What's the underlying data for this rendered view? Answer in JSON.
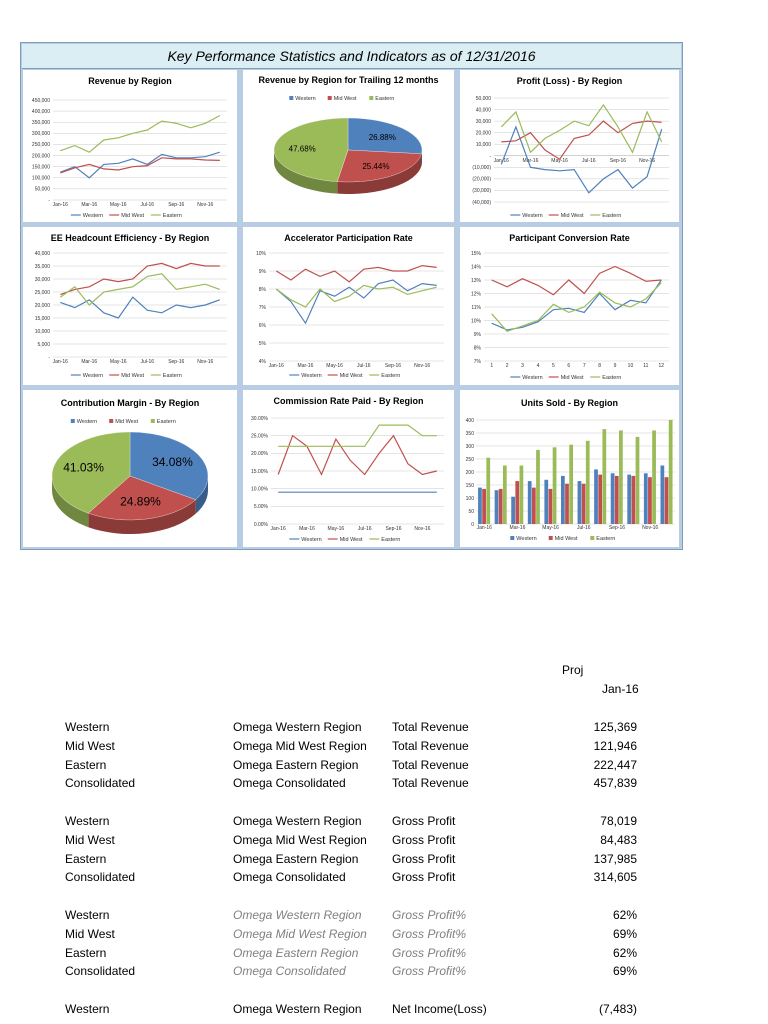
{
  "dashboard": {
    "title": "Key Performance Statistics and Indicators as of  12/31/2016",
    "colors": {
      "western": "#4f81bd",
      "midwest": "#c0504d",
      "eastern": "#9bbb59"
    },
    "legend_labels": [
      "Western",
      "Mid West",
      "Eastern"
    ]
  },
  "chart_data": [
    {
      "id": "revenue",
      "type": "line",
      "title": "Revenue by Region",
      "x": [
        "Jan-16",
        "Feb-16",
        "Mar-16",
        "Apr-16",
        "May-16",
        "Jun-16",
        "Jul-16",
        "Aug-16",
        "Sep-16",
        "Oct-16",
        "Nov-16",
        "Dec-16"
      ],
      "xticks": [
        "Jan-16",
        "Mar-16",
        "May-16",
        "Jul-16",
        "Sep-16",
        "Nov-16"
      ],
      "ylim": [
        0,
        450000
      ],
      "yticks": [
        "450,000",
        "400,000",
        "350,000",
        "300,000",
        "250,000",
        "200,000",
        "150,000",
        "100,000",
        "50,000",
        "-"
      ],
      "series": [
        {
          "name": "Western",
          "values": [
            125000,
            150000,
            100000,
            160000,
            165000,
            185000,
            160000,
            205000,
            190000,
            190000,
            195000,
            215000
          ]
        },
        {
          "name": "Mid West",
          "values": [
            122000,
            145000,
            160000,
            140000,
            135000,
            150000,
            155000,
            190000,
            185000,
            185000,
            180000,
            178000
          ]
        },
        {
          "name": "Eastern",
          "values": [
            222000,
            245000,
            215000,
            270000,
            280000,
            300000,
            315000,
            355000,
            345000,
            325000,
            345000,
            380000
          ]
        }
      ]
    },
    {
      "id": "trailing",
      "type": "pie",
      "title": "Revenue by Region for Trailing 12 months",
      "series": [
        {
          "name": "Western",
          "value": 26.88,
          "label": "26.88%"
        },
        {
          "name": "Mid West",
          "value": 25.44,
          "label": "25.44%"
        },
        {
          "name": "Eastern",
          "value": 47.68,
          "label": "47.68%"
        }
      ],
      "legend": "top"
    },
    {
      "id": "profit",
      "type": "line",
      "title": "Profit (Loss) - By Region",
      "x": [
        "Jan-16",
        "Feb-16",
        "Mar-16",
        "Apr-16",
        "May-16",
        "Jun-16",
        "Jul-16",
        "Aug-16",
        "Sep-16",
        "Oct-16",
        "Nov-16",
        "Dec-16"
      ],
      "xticks": [
        "Jan-16",
        "Mar-16",
        "May-16",
        "Jul-16",
        "Sep-16",
        "Nov-16"
      ],
      "ylim": [
        -40000,
        50000
      ],
      "yticks": [
        "50,000",
        "40,000",
        "30,000",
        "20,000",
        "10,000",
        "-",
        "(10,000)",
        "(20,000)",
        "(30,000)",
        "(40,000)"
      ],
      "series": [
        {
          "name": "Western",
          "values": [
            -7483,
            25000,
            -10000,
            -12000,
            -13000,
            -12000,
            -32000,
            -20000,
            -12000,
            -28000,
            -18000,
            23000
          ]
        },
        {
          "name": "Mid West",
          "values": [
            12000,
            13000,
            20000,
            5000,
            -3000,
            15000,
            18000,
            30000,
            20000,
            28000,
            30000,
            29000
          ]
        },
        {
          "name": "Eastern",
          "values": [
            25000,
            38000,
            3000,
            15000,
            22000,
            30000,
            26000,
            44000,
            25000,
            3000,
            38000,
            12000
          ]
        }
      ]
    },
    {
      "id": "headcount",
      "type": "line",
      "title": "EE Headcount Efficiency - By Region",
      "x": [
        "Jan-16",
        "Feb-16",
        "Mar-16",
        "Apr-16",
        "May-16",
        "Jun-16",
        "Jul-16",
        "Aug-16",
        "Sep-16",
        "Oct-16",
        "Nov-16",
        "Dec-16"
      ],
      "xticks": [
        "Jan-16",
        "Mar-16",
        "May-16",
        "Jul-16",
        "Sep-16",
        "Nov-16"
      ],
      "ylim": [
        0,
        40000
      ],
      "yticks": [
        "40,000",
        "35,000",
        "30,000",
        "25,000",
        "20,000",
        "15,000",
        "10,000",
        "5,000",
        "-"
      ],
      "series": [
        {
          "name": "Western",
          "values": [
            21000,
            19000,
            22000,
            17000,
            15000,
            23000,
            18000,
            17000,
            20000,
            19000,
            20000,
            22000
          ]
        },
        {
          "name": "Mid West",
          "values": [
            24000,
            26000,
            27000,
            30000,
            29000,
            30000,
            35000,
            36000,
            34000,
            36000,
            35000,
            35000
          ]
        },
        {
          "name": "Eastern",
          "values": [
            23000,
            27000,
            20000,
            25000,
            26000,
            27000,
            31000,
            32000,
            26000,
            27000,
            28000,
            26000
          ]
        }
      ]
    },
    {
      "id": "accelerator",
      "type": "line",
      "title": "Accelerator Participation Rate",
      "x": [
        "Jan-16",
        "Feb-16",
        "Mar-16",
        "Apr-16",
        "May-16",
        "Jun-16",
        "Jul-16",
        "Aug-16",
        "Sep-16",
        "Oct-16",
        "Nov-16",
        "Dec-16"
      ],
      "xticks": [
        "Jan-16",
        "Mar-16",
        "May-16",
        "Jul-16",
        "Sep-16",
        "Nov-16"
      ],
      "ylim": [
        4,
        10
      ],
      "yticks": [
        "10%",
        "9%",
        "8%",
        "7%",
        "6%",
        "5%",
        "4%"
      ],
      "series": [
        {
          "name": "Western",
          "values": [
            8.0,
            7.3,
            6.1,
            7.9,
            7.6,
            8.1,
            7.5,
            8.3,
            8.5,
            7.9,
            8.3,
            8.2
          ]
        },
        {
          "name": "Mid West",
          "values": [
            9.0,
            8.5,
            9.1,
            8.7,
            9.0,
            8.4,
            9.1,
            9.2,
            9.0,
            9.0,
            9.3,
            9.2
          ]
        },
        {
          "name": "Eastern",
          "values": [
            8.0,
            7.4,
            7.0,
            8.0,
            7.3,
            7.6,
            8.2,
            8.0,
            8.1,
            7.7,
            7.9,
            8.1
          ]
        }
      ]
    },
    {
      "id": "conversion",
      "type": "line",
      "title": "Participant Conversion Rate",
      "x": [
        "1",
        "2",
        "3",
        "4",
        "5",
        "6",
        "7",
        "8",
        "9",
        "10",
        "11",
        "12"
      ],
      "xticks": [
        "1",
        "2",
        "3",
        "4",
        "5",
        "6",
        "7",
        "8",
        "9",
        "10",
        "11",
        "12"
      ],
      "ylim": [
        7,
        15
      ],
      "yticks": [
        "15%",
        "14%",
        "13%",
        "12%",
        "11%",
        "10%",
        "9%",
        "8%",
        "7%"
      ],
      "series": [
        {
          "name": "Western",
          "values": [
            9.8,
            9.3,
            9.5,
            9.9,
            10.8,
            10.9,
            10.6,
            12.0,
            10.8,
            11.5,
            11.3,
            13.0
          ]
        },
        {
          "name": "Mid West",
          "values": [
            13.0,
            12.5,
            13.1,
            12.6,
            11.9,
            13.0,
            12.0,
            13.5,
            14.0,
            13.5,
            12.9,
            13.0
          ]
        },
        {
          "name": "Eastern",
          "values": [
            10.5,
            9.2,
            9.6,
            10.0,
            11.2,
            10.6,
            11.0,
            12.1,
            11.3,
            11.0,
            11.6,
            12.8
          ]
        }
      ]
    },
    {
      "id": "contribution",
      "type": "pie",
      "title": "Contribution Margin - By Region",
      "series": [
        {
          "name": "Western",
          "value": 34.08,
          "label": "34.08%"
        },
        {
          "name": "Mid West",
          "value": 24.89,
          "label": "24.89%"
        },
        {
          "name": "Eastern",
          "value": 41.03,
          "label": "41.03%"
        }
      ],
      "legend": "top"
    },
    {
      "id": "commission",
      "type": "line",
      "title": "Commission Rate Paid - By Region",
      "x": [
        "Jan-16",
        "Feb-16",
        "Mar-16",
        "Apr-16",
        "May-16",
        "Jun-16",
        "Jul-16",
        "Aug-16",
        "Sep-16",
        "Oct-16",
        "Nov-16",
        "Dec-16"
      ],
      "xticks": [
        "Jan-16",
        "Mar-16",
        "May-16",
        "Jul-16",
        "Sep-16",
        "Nov-16"
      ],
      "ylim": [
        0,
        30
      ],
      "yticks": [
        "30.00%",
        "25.00%",
        "20.00%",
        "15.00%",
        "10.00%",
        "5.00%",
        "0.00%"
      ],
      "series": [
        {
          "name": "Western",
          "values": [
            9,
            9,
            9,
            9,
            9,
            9,
            9,
            9,
            9,
            9,
            9,
            9
          ]
        },
        {
          "name": "Mid West",
          "values": [
            14,
            25,
            22,
            14,
            24,
            18,
            14,
            20,
            25,
            17,
            14,
            15
          ]
        },
        {
          "name": "Eastern",
          "values": [
            22,
            22,
            22,
            22,
            22,
            22,
            22,
            28,
            28,
            28,
            25,
            25
          ]
        }
      ]
    },
    {
      "id": "units",
      "type": "bar",
      "title": "Units Sold - By Region",
      "x": [
        "Jan-16",
        "Feb-16",
        "Mar-16",
        "Apr-16",
        "May-16",
        "Jun-16",
        "Jul-16",
        "Aug-16",
        "Sep-16",
        "Oct-16",
        "Nov-16",
        "Dec-16"
      ],
      "xticks": [
        "Jan-16",
        "Mar-16",
        "May-16",
        "Jul-16",
        "Sep-16",
        "Nov-16"
      ],
      "ylim": [
        0,
        400
      ],
      "yticks": [
        "400",
        "350",
        "300",
        "250",
        "200",
        "150",
        "100",
        "50",
        "0"
      ],
      "series": [
        {
          "name": "Western",
          "values": [
            140,
            130,
            105,
            165,
            170,
            185,
            165,
            210,
            195,
            190,
            195,
            225
          ]
        },
        {
          "name": "Mid West",
          "values": [
            135,
            135,
            165,
            140,
            135,
            155,
            155,
            190,
            185,
            185,
            180,
            180
          ]
        },
        {
          "name": "Eastern",
          "values": [
            255,
            225,
            225,
            285,
            295,
            305,
            320,
            365,
            360,
            335,
            360,
            400
          ]
        }
      ]
    }
  ],
  "table": {
    "header_proj": "Proj",
    "header_month": "Jan-16",
    "groups": [
      {
        "style": "normal",
        "rows": [
          [
            "Western",
            "Omega Western Region",
            "Total Revenue",
            "125,369"
          ],
          [
            "Mid West",
            "Omega Mid West Region",
            "Total Revenue",
            "121,946"
          ],
          [
            "Eastern",
            "Omega Eastern Region",
            "Total Revenue",
            "222,447"
          ],
          [
            "Consolidated",
            "Omega Consolidated",
            "Total Revenue",
            "457,839"
          ]
        ]
      },
      {
        "style": "normal",
        "rows": [
          [
            "Western",
            "Omega Western Region",
            "Gross Profit",
            "78,019"
          ],
          [
            "Mid West",
            "Omega Mid West Region",
            "Gross Profit",
            "84,483"
          ],
          [
            "Eastern",
            "Omega Eastern Region",
            "Gross Profit",
            "137,985"
          ],
          [
            "Consolidated",
            "Omega Consolidated",
            "Gross Profit",
            "314,605"
          ]
        ]
      },
      {
        "style": "gray",
        "rows": [
          [
            "Western",
            "Omega Western Region",
            "Gross Profit%",
            "62%"
          ],
          [
            "Mid West",
            "Omega Mid West Region",
            "Gross Profit%",
            "69%"
          ],
          [
            "Eastern",
            "Omega Eastern Region",
            "Gross Profit%",
            "62%"
          ],
          [
            "Consolidated",
            "Omega Consolidated",
            "Gross Profit%",
            "69%"
          ]
        ]
      },
      {
        "style": "normal",
        "rows": [
          [
            "Western",
            "Omega Western Region",
            "Net Income(Loss)",
            "(7,483)"
          ]
        ]
      }
    ]
  }
}
